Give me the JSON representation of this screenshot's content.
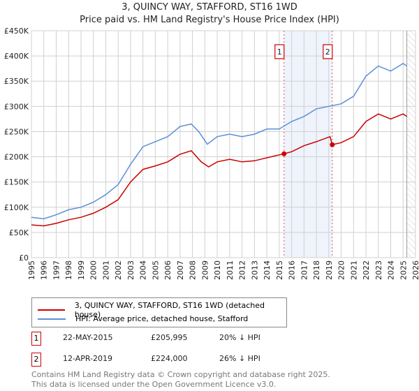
{
  "chart_data": {
    "type": "line",
    "title": "3, QUINCY WAY, STAFFORD, ST16 1WD",
    "subtitle": "Price paid vs. HM Land Registry's House Price Index (HPI)",
    "xlim": [
      1995,
      2026
    ],
    "ylim": [
      0,
      450000
    ],
    "y_ticks": [
      {
        "v": 0,
        "label": "£0"
      },
      {
        "v": 50000,
        "label": "£50K"
      },
      {
        "v": 100000,
        "label": "£100K"
      },
      {
        "v": 150000,
        "label": "£150K"
      },
      {
        "v": 200000,
        "label": "£200K"
      },
      {
        "v": 250000,
        "label": "£250K"
      },
      {
        "v": 300000,
        "label": "£300K"
      },
      {
        "v": 350000,
        "label": "£350K"
      },
      {
        "v": 400000,
        "label": "£400K"
      },
      {
        "v": 450000,
        "label": "£450K"
      }
    ],
    "x_ticks": [
      "1995",
      "1996",
      "1997",
      "1998",
      "1999",
      "2000",
      "2001",
      "2002",
      "2003",
      "2004",
      "2005",
      "2006",
      "2007",
      "2008",
      "2009",
      "2010",
      "2011",
      "2012",
      "2013",
      "2014",
      "2015",
      "2016",
      "2017",
      "2018",
      "2019",
      "2020",
      "2021",
      "2022",
      "2023",
      "2024",
      "2025",
      "2026"
    ],
    "grid": true,
    "series": [
      {
        "name": "3, QUINCY WAY, STAFFORD, ST16 1WD (detached house)",
        "color": "#cc0000",
        "x": [
          1995,
          1996,
          1997,
          1998,
          1999,
          2000,
          2001,
          2002,
          2003,
          2004,
          2005,
          2006,
          2007,
          2007.9,
          2008.7,
          2009.3,
          2010,
          2011,
          2012,
          2013,
          2014,
          2015.39,
          2016,
          2017,
          2018,
          2019.1,
          2019.28,
          2020,
          2021,
          2022,
          2023,
          2024,
          2025,
          2025.3
        ],
        "y": [
          65000,
          63000,
          68000,
          75000,
          80000,
          88000,
          100000,
          115000,
          150000,
          175000,
          182000,
          190000,
          205000,
          212000,
          190000,
          180000,
          190000,
          195000,
          190000,
          192000,
          198000,
          205995,
          210000,
          222000,
          230000,
          240000,
          224000,
          228000,
          240000,
          270000,
          285000,
          275000,
          285000,
          280000
        ]
      },
      {
        "name": "HPI: Average price, detached house, Stafford",
        "color": "#5b8fd6",
        "x": [
          1995,
          1996,
          1997,
          1998,
          1999,
          2000,
          2001,
          2002,
          2003,
          2004,
          2005,
          2006,
          2007,
          2007.9,
          2008.5,
          2009.2,
          2010,
          2011,
          2012,
          2013,
          2014,
          2015,
          2016,
          2017,
          2018,
          2019,
          2020,
          2021,
          2022,
          2023,
          2024,
          2025,
          2025.3
        ],
        "y": [
          80000,
          77000,
          85000,
          95000,
          100000,
          110000,
          125000,
          145000,
          185000,
          220000,
          230000,
          240000,
          260000,
          265000,
          250000,
          225000,
          240000,
          245000,
          240000,
          245000,
          255000,
          255000,
          270000,
          280000,
          295000,
          300000,
          305000,
          320000,
          360000,
          380000,
          370000,
          385000,
          380000
        ]
      }
    ],
    "annotations": [
      {
        "label": "1",
        "x": 2015.39,
        "y": 205995,
        "date": "22-MAY-2015",
        "price": "£205,995",
        "hpi": "20% ↓ HPI"
      },
      {
        "label": "2",
        "x": 2019.28,
        "y": 224000,
        "date": "12-APR-2019",
        "price": "£224,000",
        "hpi": "26% ↓ HPI"
      }
    ],
    "forecast_start": 2025.3,
    "legend_position": "bottom"
  },
  "footer": [
    "Contains HM Land Registry data © Crown copyright and database right 2025.",
    "This data is licensed under the Open Government Licence v3.0."
  ]
}
